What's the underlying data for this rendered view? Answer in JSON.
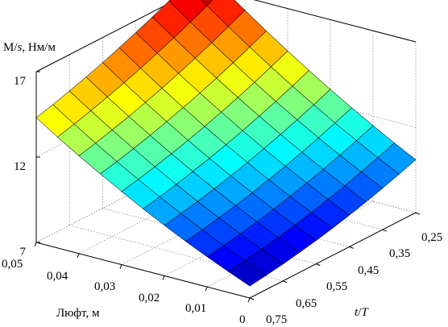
{
  "chart_data": {
    "type": "surface",
    "title": "",
    "zlabel": {
      "main": "M/",
      "var": "s",
      "rest": ", Нм/м"
    },
    "xlabel": "Люфт, м",
    "ylabel": {
      "var1": "t",
      "slash": "/",
      "var2": "T"
    },
    "z_ticks": [
      "17",
      "12",
      "7"
    ],
    "x_ticks": [
      "0.05",
      "0.04",
      "0.03",
      "0.02",
      "0.01",
      "0"
    ],
    "x_tick_labels": [
      "0,05",
      "0,04",
      "0,03",
      "0,02",
      "0,01",
      "0"
    ],
    "y_ticks": [
      "0.25",
      "0.35",
      "0.45",
      "0.55",
      "0.65",
      "0.75"
    ],
    "y_tick_labels": [
      "0,25",
      "0,35",
      "0,45",
      "0,55",
      "0,65",
      "0,75"
    ],
    "xlim": [
      0,
      0.05
    ],
    "ylim": [
      0.25,
      0.75
    ],
    "zlim": [
      7,
      17
    ],
    "colormap": "jet",
    "grid": true,
    "corner_values": {
      "luft_0.05_t_0.75": 14.3,
      "luft_0.05_t_0.25": 18.1,
      "luft_0_t_0.25": 10.1,
      "luft_0_t_0.75": 7.7
    }
  }
}
